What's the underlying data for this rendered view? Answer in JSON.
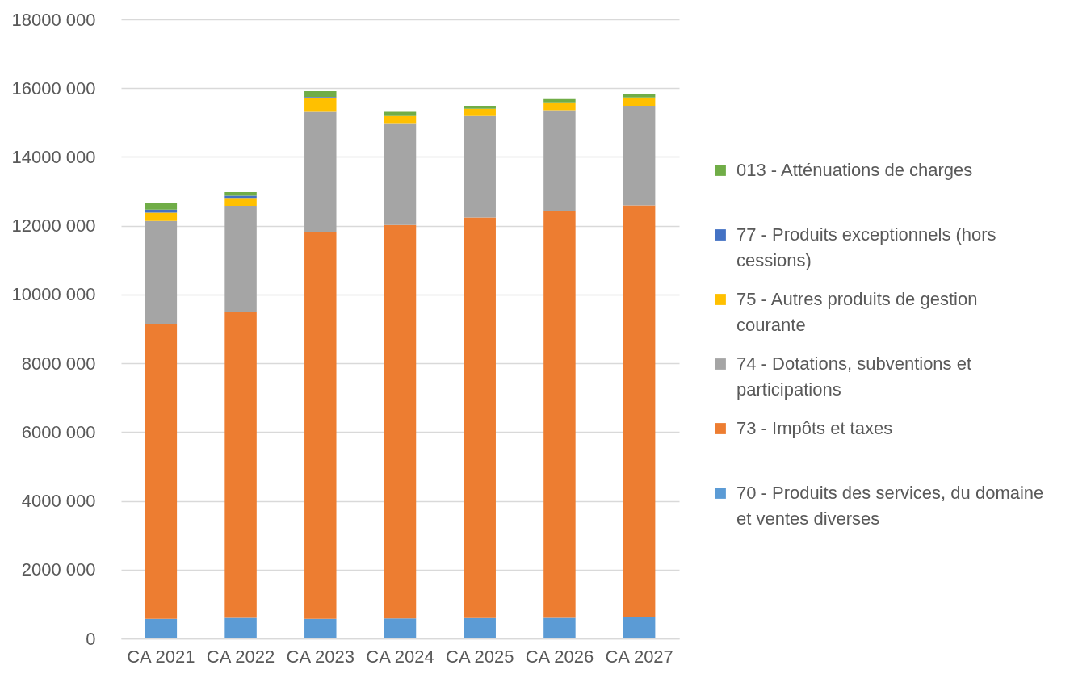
{
  "chart_data": {
    "type": "bar",
    "stacked": true,
    "categories": [
      "CA 2021",
      "CA 2022",
      "CA 2023",
      "CA 2024",
      "CA 2025",
      "CA 2026",
      "CA 2027"
    ],
    "series": [
      {
        "name": "70 - Produits des services, du domaine et ventes diverses",
        "color": "#5b9bd5",
        "values": [
          570000,
          600000,
          570000,
          580000,
          590000,
          600000,
          620000
        ]
      },
      {
        "name": "73 - Impôts et taxes",
        "color": "#ed7d31",
        "values": [
          8560000,
          8890000,
          11240000,
          11440000,
          11650000,
          11820000,
          11970000
        ]
      },
      {
        "name": "74 - Dotations, subventions et participations",
        "color": "#a5a5a5",
        "values": [
          3010000,
          3090000,
          3500000,
          2940000,
          2950000,
          2940000,
          2900000
        ]
      },
      {
        "name": "75 - Autres produits de gestion courante",
        "color": "#ffc000",
        "values": [
          240000,
          230000,
          420000,
          230000,
          210000,
          230000,
          240000
        ]
      },
      {
        "name": "77 - Produits exceptionnels (hors cessions)",
        "color": "#4472c4",
        "values": [
          90000,
          60000,
          20000,
          null,
          null,
          null,
          null
        ]
      },
      {
        "name": "013 - Atténuations de charges",
        "color": "#70ad47",
        "values": [
          180000,
          110000,
          160000,
          120000,
          90000,
          90000,
          90000
        ]
      }
    ],
    "ylim": [
      0,
      18000000
    ],
    "yticks": [
      0,
      {
        "value": 2000000,
        "label": "2000 000"
      },
      {
        "value": 4000000,
        "label": "4000 000"
      },
      {
        "value": 6000000,
        "label": "6000 000"
      },
      {
        "value": 8000000,
        "label": "8000 000"
      },
      {
        "value": 10000000,
        "label": "10000 000"
      },
      {
        "value": 12000000,
        "label": "12000 000"
      },
      {
        "value": 14000000,
        "label": "14000 000"
      },
      {
        "value": 16000000,
        "label": "16000 000"
      },
      {
        "value": 18000000,
        "label": "18000 000"
      }
    ],
    "grid": "y",
    "legend": "right"
  }
}
